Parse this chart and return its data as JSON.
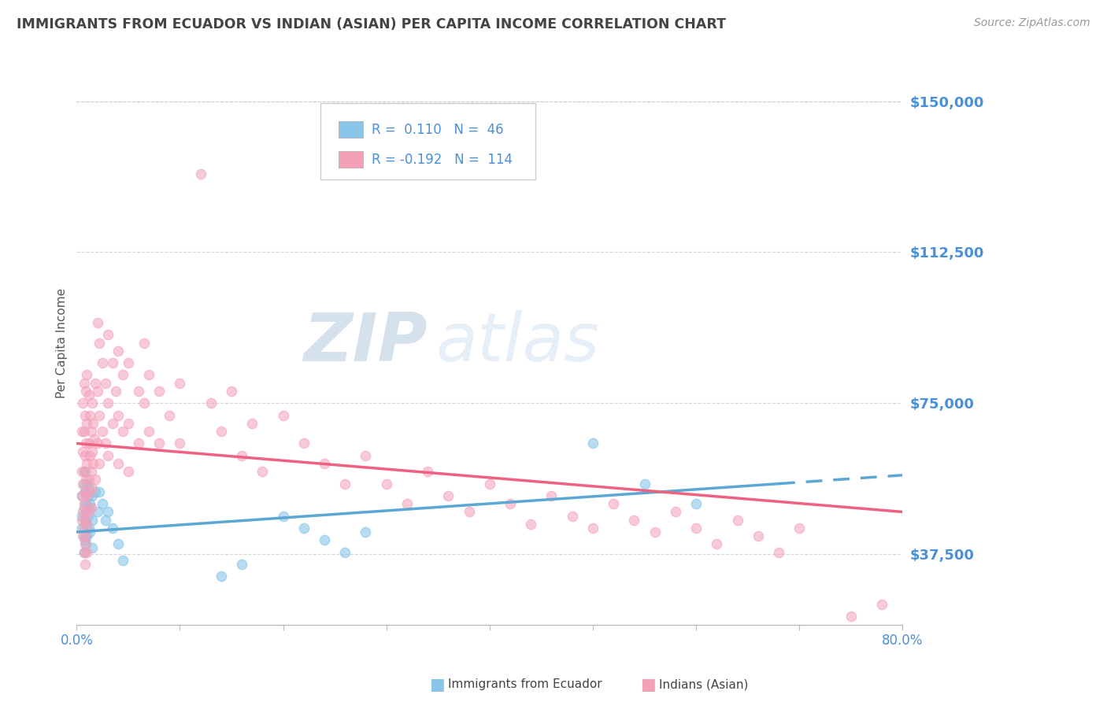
{
  "title": "IMMIGRANTS FROM ECUADOR VS INDIAN (ASIAN) PER CAPITA INCOME CORRELATION CHART",
  "source": "Source: ZipAtlas.com",
  "ylabel": "Per Capita Income",
  "xlim": [
    0.0,
    0.8
  ],
  "ylim": [
    20000,
    160000
  ],
  "yticks": [
    37500,
    75000,
    112500,
    150000
  ],
  "ytick_labels": [
    "$37,500",
    "$75,000",
    "$112,500",
    "$150,000"
  ],
  "xticks": [
    0.0,
    0.1,
    0.2,
    0.3,
    0.4,
    0.5,
    0.6,
    0.7,
    0.8
  ],
  "xtick_labels": [
    "0.0%",
    "",
    "",
    "",
    "",
    "",
    "",
    "",
    "80.0%"
  ],
  "ecuador_R": 0.11,
  "ecuador_N": 46,
  "india_R": -0.192,
  "india_N": 114,
  "ecuador_color": "#88c5e8",
  "india_color": "#f4a0b8",
  "ecuador_line_color": "#5ba8d4",
  "india_line_color": "#f06080",
  "background_color": "#ffffff",
  "grid_color": "#cccccc",
  "title_color": "#444444",
  "axis_label_color": "#4a90d9",
  "watermark": "ZIPatlas",
  "watermark_color_zip": "#b8cce4",
  "watermark_color_atlas": "#c5d8ee",
  "ecuador_scatter": [
    [
      0.005,
      52000
    ],
    [
      0.005,
      47000
    ],
    [
      0.005,
      44000
    ],
    [
      0.007,
      55000
    ],
    [
      0.007,
      49000
    ],
    [
      0.007,
      42000
    ],
    [
      0.007,
      38000
    ],
    [
      0.008,
      58000
    ],
    [
      0.008,
      53000
    ],
    [
      0.008,
      46000
    ],
    [
      0.008,
      41000
    ],
    [
      0.009,
      50000
    ],
    [
      0.009,
      45000
    ],
    [
      0.009,
      40000
    ],
    [
      0.01,
      55000
    ],
    [
      0.01,
      48000
    ],
    [
      0.01,
      42000
    ],
    [
      0.011,
      52000
    ],
    [
      0.011,
      47000
    ],
    [
      0.012,
      54000
    ],
    [
      0.012,
      49000
    ],
    [
      0.012,
      44000
    ],
    [
      0.013,
      50000
    ],
    [
      0.013,
      43000
    ],
    [
      0.015,
      52000
    ],
    [
      0.015,
      46000
    ],
    [
      0.015,
      39000
    ],
    [
      0.018,
      53000
    ],
    [
      0.02,
      48000
    ],
    [
      0.022,
      53000
    ],
    [
      0.025,
      50000
    ],
    [
      0.028,
      46000
    ],
    [
      0.03,
      48000
    ],
    [
      0.035,
      44000
    ],
    [
      0.04,
      40000
    ],
    [
      0.045,
      36000
    ],
    [
      0.2,
      47000
    ],
    [
      0.22,
      44000
    ],
    [
      0.24,
      41000
    ],
    [
      0.26,
      38000
    ],
    [
      0.28,
      43000
    ],
    [
      0.5,
      65000
    ],
    [
      0.55,
      55000
    ],
    [
      0.6,
      50000
    ],
    [
      0.14,
      32000
    ],
    [
      0.16,
      35000
    ]
  ],
  "india_scatter": [
    [
      0.005,
      68000
    ],
    [
      0.005,
      58000
    ],
    [
      0.005,
      52000
    ],
    [
      0.005,
      46000
    ],
    [
      0.006,
      75000
    ],
    [
      0.006,
      63000
    ],
    [
      0.006,
      55000
    ],
    [
      0.006,
      48000
    ],
    [
      0.006,
      42000
    ],
    [
      0.007,
      80000
    ],
    [
      0.007,
      68000
    ],
    [
      0.007,
      58000
    ],
    [
      0.007,
      50000
    ],
    [
      0.007,
      44000
    ],
    [
      0.007,
      38000
    ],
    [
      0.008,
      72000
    ],
    [
      0.008,
      62000
    ],
    [
      0.008,
      53000
    ],
    [
      0.008,
      46000
    ],
    [
      0.008,
      40000
    ],
    [
      0.008,
      35000
    ],
    [
      0.009,
      78000
    ],
    [
      0.009,
      65000
    ],
    [
      0.009,
      56000
    ],
    [
      0.009,
      48000
    ],
    [
      0.009,
      42000
    ],
    [
      0.01,
      82000
    ],
    [
      0.01,
      70000
    ],
    [
      0.01,
      60000
    ],
    [
      0.01,
      52000
    ],
    [
      0.01,
      45000
    ],
    [
      0.01,
      38000
    ],
    [
      0.012,
      77000
    ],
    [
      0.012,
      65000
    ],
    [
      0.012,
      56000
    ],
    [
      0.012,
      48000
    ],
    [
      0.013,
      72000
    ],
    [
      0.013,
      62000
    ],
    [
      0.013,
      53000
    ],
    [
      0.014,
      68000
    ],
    [
      0.014,
      58000
    ],
    [
      0.014,
      49000
    ],
    [
      0.015,
      75000
    ],
    [
      0.015,
      63000
    ],
    [
      0.015,
      54000
    ],
    [
      0.016,
      70000
    ],
    [
      0.016,
      60000
    ],
    [
      0.017,
      66000
    ],
    [
      0.018,
      80000
    ],
    [
      0.018,
      56000
    ],
    [
      0.02,
      95000
    ],
    [
      0.02,
      78000
    ],
    [
      0.02,
      65000
    ],
    [
      0.022,
      90000
    ],
    [
      0.022,
      72000
    ],
    [
      0.022,
      60000
    ],
    [
      0.025,
      85000
    ],
    [
      0.025,
      68000
    ],
    [
      0.028,
      80000
    ],
    [
      0.028,
      65000
    ],
    [
      0.03,
      92000
    ],
    [
      0.03,
      75000
    ],
    [
      0.03,
      62000
    ],
    [
      0.035,
      85000
    ],
    [
      0.035,
      70000
    ],
    [
      0.038,
      78000
    ],
    [
      0.04,
      88000
    ],
    [
      0.04,
      72000
    ],
    [
      0.04,
      60000
    ],
    [
      0.045,
      82000
    ],
    [
      0.045,
      68000
    ],
    [
      0.05,
      85000
    ],
    [
      0.05,
      70000
    ],
    [
      0.05,
      58000
    ],
    [
      0.06,
      78000
    ],
    [
      0.06,
      65000
    ],
    [
      0.065,
      90000
    ],
    [
      0.065,
      75000
    ],
    [
      0.07,
      82000
    ],
    [
      0.07,
      68000
    ],
    [
      0.08,
      78000
    ],
    [
      0.08,
      65000
    ],
    [
      0.09,
      72000
    ],
    [
      0.1,
      80000
    ],
    [
      0.1,
      65000
    ],
    [
      0.12,
      132000
    ],
    [
      0.13,
      75000
    ],
    [
      0.14,
      68000
    ],
    [
      0.15,
      78000
    ],
    [
      0.16,
      62000
    ],
    [
      0.17,
      70000
    ],
    [
      0.18,
      58000
    ],
    [
      0.2,
      72000
    ],
    [
      0.22,
      65000
    ],
    [
      0.24,
      60000
    ],
    [
      0.26,
      55000
    ],
    [
      0.28,
      62000
    ],
    [
      0.3,
      55000
    ],
    [
      0.32,
      50000
    ],
    [
      0.34,
      58000
    ],
    [
      0.36,
      52000
    ],
    [
      0.38,
      48000
    ],
    [
      0.4,
      55000
    ],
    [
      0.42,
      50000
    ],
    [
      0.44,
      45000
    ],
    [
      0.46,
      52000
    ],
    [
      0.48,
      47000
    ],
    [
      0.5,
      44000
    ],
    [
      0.52,
      50000
    ],
    [
      0.54,
      46000
    ],
    [
      0.56,
      43000
    ],
    [
      0.58,
      48000
    ],
    [
      0.6,
      44000
    ],
    [
      0.62,
      40000
    ],
    [
      0.64,
      46000
    ],
    [
      0.66,
      42000
    ],
    [
      0.68,
      38000
    ],
    [
      0.7,
      44000
    ],
    [
      0.75,
      22000
    ],
    [
      0.78,
      25000
    ]
  ]
}
